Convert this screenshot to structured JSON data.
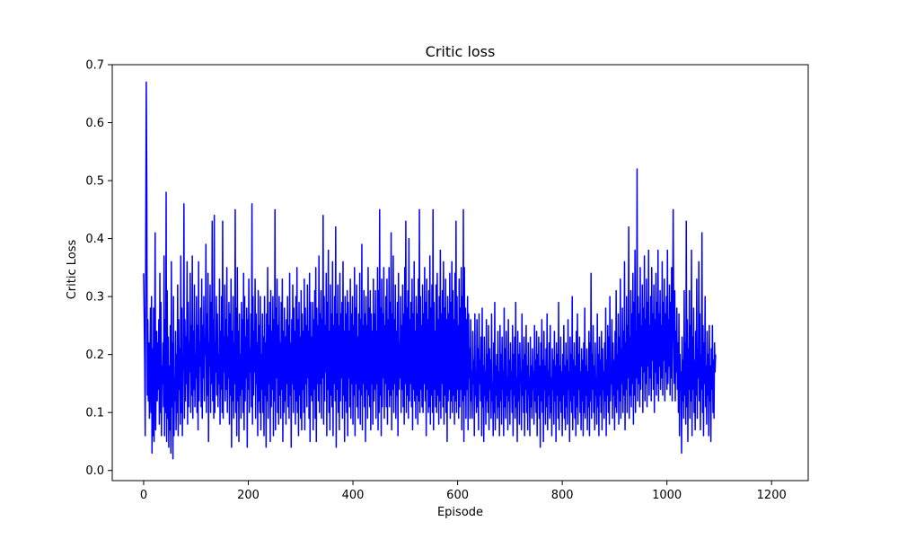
{
  "chart_data": {
    "type": "line",
    "title": "Critic loss",
    "xlabel": "Episode",
    "ylabel": "Critic Loss",
    "xlim": [
      -60,
      1270
    ],
    "ylim": [
      -0.0175,
      0.7
    ],
    "x_ticks": [
      0,
      200,
      400,
      600,
      800,
      1000,
      1200
    ],
    "y_ticks": [
      0.0,
      0.1,
      0.2,
      0.3,
      0.4,
      0.5,
      0.6,
      0.7
    ],
    "y_tick_labels": [
      "0.0",
      "0.1",
      "0.2",
      "0.3",
      "0.4",
      "0.5",
      "0.6",
      "0.7"
    ],
    "grid": false,
    "legend": "none",
    "series": [
      {
        "name": "",
        "color": "#0000ff",
        "x_start": 0,
        "x_step": 1,
        "description_points": "one loss value per episode, episodes 0-1210",
        "values": [
          0.34,
          0.27,
          0.19,
          0.06,
          0.4,
          0.67,
          0.49,
          0.13,
          0.26,
          0.12,
          0.22,
          0.09,
          0.18,
          0.28,
          0.1,
          0.3,
          0.03,
          0.21,
          0.06,
          0.28,
          0.05,
          0.2,
          0.41,
          0.07,
          0.17,
          0.24,
          0.12,
          0.22,
          0.14,
          0.26,
          0.08,
          0.34,
          0.1,
          0.29,
          0.06,
          0.18,
          0.15,
          0.22,
          0.11,
          0.37,
          0.06,
          0.26,
          0.1,
          0.48,
          0.05,
          0.31,
          0.09,
          0.23,
          0.04,
          0.18,
          0.07,
          0.25,
          0.03,
          0.36,
          0.11,
          0.22,
          0.02,
          0.3,
          0.06,
          0.16,
          0.12,
          0.24,
          0.07,
          0.2,
          0.1,
          0.32,
          0.06,
          0.26,
          0.14,
          0.21,
          0.08,
          0.37,
          0.1,
          0.28,
          0.06,
          0.17,
          0.2,
          0.46,
          0.09,
          0.26,
          0.12,
          0.23,
          0.15,
          0.36,
          0.08,
          0.29,
          0.11,
          0.22,
          0.17,
          0.34,
          0.1,
          0.25,
          0.13,
          0.37,
          0.09,
          0.24,
          0.14,
          0.32,
          0.11,
          0.2,
          0.16,
          0.3,
          0.1,
          0.25,
          0.07,
          0.36,
          0.12,
          0.22,
          0.18,
          0.28,
          0.11,
          0.33,
          0.09,
          0.25,
          0.16,
          0.3,
          0.12,
          0.23,
          0.2,
          0.39,
          0.1,
          0.27,
          0.13,
          0.34,
          0.05,
          0.22,
          0.18,
          0.32,
          0.1,
          0.29,
          0.15,
          0.43,
          0.12,
          0.26,
          0.09,
          0.44,
          0.1,
          0.22,
          0.17,
          0.3,
          0.13,
          0.27,
          0.11,
          0.2,
          0.15,
          0.33,
          0.08,
          0.24,
          0.14,
          0.3,
          0.1,
          0.43,
          0.09,
          0.23,
          0.17,
          0.32,
          0.12,
          0.26,
          0.14,
          0.35,
          0.1,
          0.23,
          0.16,
          0.29,
          0.08,
          0.27,
          0.13,
          0.33,
          0.04,
          0.24,
          0.12,
          0.3,
          0.09,
          0.22,
          0.15,
          0.45,
          0.1,
          0.28,
          0.06,
          0.35,
          0.12,
          0.24,
          0.05,
          0.27,
          0.13,
          0.2,
          0.09,
          0.29,
          0.14,
          0.26,
          0.1,
          0.34,
          0.07,
          0.3,
          0.12,
          0.23,
          0.16,
          0.28,
          0.04,
          0.26,
          0.14,
          0.33,
          0.1,
          0.21,
          0.17,
          0.27,
          0.11,
          0.46,
          0.08,
          0.3,
          0.13,
          0.24,
          0.17,
          0.33,
          0.09,
          0.27,
          0.15,
          0.22,
          0.06,
          0.31,
          0.12,
          0.25,
          0.1,
          0.3,
          0.07,
          0.2,
          0.14,
          0.27,
          0.1,
          0.23,
          0.06,
          0.3,
          0.13,
          0.22,
          0.04,
          0.27,
          0.12,
          0.35,
          0.09,
          0.25,
          0.15,
          0.29,
          0.05,
          0.31,
          0.11,
          0.24,
          0.14,
          0.3,
          0.06,
          0.26,
          0.12,
          0.45,
          0.07,
          0.28,
          0.16,
          0.33,
          0.1,
          0.25,
          0.08,
          0.3,
          0.13,
          0.22,
          0.09,
          0.29,
          0.14,
          0.33,
          0.05,
          0.24,
          0.1,
          0.28,
          0.12,
          0.23,
          0.08,
          0.26,
          0.15,
          0.3,
          0.11,
          0.25,
          0.09,
          0.34,
          0.13,
          0.22,
          0.04,
          0.26,
          0.15,
          0.32,
          0.1,
          0.28,
          0.14,
          0.24,
          0.08,
          0.3,
          0.12,
          0.35,
          0.1,
          0.26,
          0.06,
          0.29,
          0.13,
          0.23,
          0.09,
          0.31,
          0.07,
          0.27,
          0.14,
          0.24,
          0.1,
          0.33,
          0.07,
          0.28,
          0.15,
          0.25,
          0.11,
          0.32,
          0.16,
          0.24,
          0.09,
          0.34,
          0.05,
          0.29,
          0.13,
          0.23,
          0.12,
          0.29,
          0.07,
          0.26,
          0.14,
          0.31,
          0.09,
          0.35,
          0.05,
          0.28,
          0.15,
          0.25,
          0.12,
          0.37,
          0.1,
          0.27,
          0.15,
          0.31,
          0.09,
          0.26,
          0.16,
          0.44,
          0.08,
          0.3,
          0.12,
          0.25,
          0.17,
          0.34,
          0.06,
          0.29,
          0.14,
          0.38,
          0.1,
          0.24,
          0.07,
          0.32,
          0.13,
          0.27,
          0.11,
          0.36,
          0.06,
          0.25,
          0.15,
          0.3,
          0.12,
          0.42,
          0.04,
          0.27,
          0.14,
          0.32,
          0.1,
          0.25,
          0.07,
          0.34,
          0.12,
          0.27,
          0.16,
          0.29,
          0.09,
          0.36,
          0.13,
          0.24,
          0.05,
          0.3,
          0.12,
          0.27,
          0.1,
          0.31,
          0.06,
          0.29,
          0.16,
          0.24,
          0.11,
          0.33,
          0.09,
          0.27,
          0.15,
          0.3,
          0.08,
          0.25,
          0.13,
          0.35,
          0.06,
          0.28,
          0.15,
          0.32,
          0.11,
          0.23,
          0.09,
          0.27,
          0.14,
          0.34,
          0.08,
          0.26,
          0.13,
          0.39,
          0.07,
          0.25,
          0.15,
          0.31,
          0.11,
          0.27,
          0.05,
          0.3,
          0.14,
          0.25,
          0.09,
          0.35,
          0.13,
          0.28,
          0.11,
          0.31,
          0.07,
          0.27,
          0.15,
          0.24,
          0.08,
          0.33,
          0.12,
          0.27,
          0.14,
          0.31,
          0.09,
          0.24,
          0.15,
          0.35,
          0.07,
          0.31,
          0.1,
          0.45,
          0.13,
          0.28,
          0.06,
          0.33,
          0.11,
          0.27,
          0.16,
          0.35,
          0.09,
          0.25,
          0.15,
          0.3,
          0.11,
          0.33,
          0.08,
          0.26,
          0.14,
          0.35,
          0.11,
          0.29,
          0.13,
          0.41,
          0.07,
          0.27,
          0.14,
          0.37,
          0.1,
          0.26,
          0.15,
          0.32,
          0.09,
          0.24,
          0.13,
          0.29,
          0.06,
          0.34,
          0.14,
          0.22,
          0.16,
          0.3,
          0.1,
          0.25,
          0.14,
          0.32,
          0.11,
          0.27,
          0.08,
          0.35,
          0.15,
          0.43,
          0.1,
          0.28,
          0.13,
          0.31,
          0.09,
          0.4,
          0.12,
          0.26,
          0.15,
          0.29,
          0.11,
          0.33,
          0.07,
          0.27,
          0.14,
          0.36,
          0.12,
          0.24,
          0.09,
          0.3,
          0.13,
          0.27,
          0.08,
          0.33,
          0.12,
          0.45,
          0.1,
          0.3,
          0.14,
          0.25,
          0.11,
          0.32,
          0.1,
          0.27,
          0.15,
          0.35,
          0.12,
          0.29,
          0.06,
          0.33,
          0.14,
          0.26,
          0.1,
          0.31,
          0.11,
          0.37,
          0.08,
          0.28,
          0.13,
          0.32,
          0.1,
          0.45,
          0.07,
          0.29,
          0.14,
          0.24,
          0.11,
          0.32,
          0.1,
          0.34,
          0.13,
          0.26,
          0.08,
          0.3,
          0.12,
          0.38,
          0.09,
          0.27,
          0.15,
          0.31,
          0.11,
          0.36,
          0.08,
          0.28,
          0.13,
          0.33,
          0.1,
          0.26,
          0.05,
          0.3,
          0.12,
          0.27,
          0.14,
          0.34,
          0.09,
          0.29,
          0.12,
          0.36,
          0.1,
          0.31,
          0.13,
          0.26,
          0.08,
          0.34,
          0.12,
          0.43,
          0.1,
          0.3,
          0.14,
          0.25,
          0.09,
          0.33,
          0.11,
          0.28,
          0.14,
          0.35,
          0.07,
          0.3,
          0.12,
          0.45,
          0.05,
          0.35,
          0.13,
          0.28,
          0.09,
          0.26,
          0.14,
          0.3,
          0.07,
          0.27,
          0.16,
          0.21,
          0.09,
          0.26,
          0.12,
          0.17,
          0.09,
          0.24,
          0.15,
          0.19,
          0.06,
          0.27,
          0.13,
          0.17,
          0.1,
          0.26,
          0.11,
          0.21,
          0.07,
          0.27,
          0.15,
          0.19,
          0.12,
          0.23,
          0.06,
          0.28,
          0.11,
          0.18,
          0.05,
          0.23,
          0.13,
          0.17,
          0.08,
          0.26,
          0.12,
          0.2,
          0.1,
          0.25,
          0.07,
          0.21,
          0.14,
          0.19,
          0.09,
          0.27,
          0.12,
          0.15,
          0.06,
          0.22,
          0.1,
          0.29,
          0.07,
          0.18,
          0.13,
          0.2,
          0.09,
          0.24,
          0.11,
          0.17,
          0.06,
          0.25,
          0.12,
          0.2,
          0.08,
          0.23,
          0.14,
          0.17,
          0.06,
          0.28,
          0.11,
          0.21,
          0.09,
          0.24,
          0.13,
          0.16,
          0.07,
          0.26,
          0.12,
          0.19,
          0.08,
          0.22,
          0.14,
          0.17,
          0.1,
          0.25,
          0.06,
          0.2,
          0.13,
          0.23,
          0.09,
          0.29,
          0.11,
          0.16,
          0.05,
          0.24,
          0.12,
          0.2,
          0.08,
          0.22,
          0.15,
          0.17,
          0.07,
          0.27,
          0.13,
          0.19,
          0.1,
          0.23,
          0.06,
          0.2,
          0.14,
          0.25,
          0.1,
          0.18,
          0.07,
          0.22,
          0.13,
          0.16,
          0.06,
          0.23,
          0.11,
          0.18,
          0.09,
          0.21,
          0.14,
          0.17,
          0.08,
          0.25,
          0.12,
          0.19,
          0.1,
          0.24,
          0.06,
          0.2,
          0.13,
          0.23,
          0.09,
          0.18,
          0.04,
          0.22,
          0.12,
          0.26,
          0.1,
          0.19,
          0.05,
          0.24,
          0.14,
          0.18,
          0.08,
          0.21,
          0.11,
          0.27,
          0.07,
          0.17,
          0.13,
          0.22,
          0.09,
          0.25,
          0.1,
          0.16,
          0.06,
          0.21,
          0.14,
          0.19,
          0.08,
          0.24,
          0.12,
          0.18,
          0.05,
          0.22,
          0.13,
          0.2,
          0.09,
          0.29,
          0.07,
          0.18,
          0.12,
          0.23,
          0.1,
          0.17,
          0.06,
          0.2,
          0.13,
          0.25,
          0.09,
          0.18,
          0.07,
          0.22,
          0.11,
          0.19,
          0.08,
          0.26,
          0.14,
          0.17,
          0.05,
          0.23,
          0.12,
          0.2,
          0.1,
          0.3,
          0.07,
          0.19,
          0.13,
          0.22,
          0.09,
          0.18,
          0.06,
          0.24,
          0.11,
          0.27,
          0.08,
          0.2,
          0.14,
          0.23,
          0.1,
          0.17,
          0.07,
          0.21,
          0.12,
          0.19,
          0.06,
          0.22,
          0.1,
          0.28,
          0.09,
          0.18,
          0.13,
          0.21,
          0.07,
          0.17,
          0.11,
          0.24,
          0.06,
          0.22,
          0.12,
          0.34,
          0.09,
          0.2,
          0.14,
          0.25,
          0.1,
          0.18,
          0.07,
          0.22,
          0.13,
          0.16,
          0.08,
          0.27,
          0.11,
          0.2,
          0.06,
          0.23,
          0.13,
          0.19,
          0.1,
          0.24,
          0.07,
          0.21,
          0.14,
          0.17,
          0.09,
          0.22,
          0.12,
          0.28,
          0.06,
          0.19,
          0.13,
          0.25,
          0.1,
          0.23,
          0.08,
          0.3,
          0.12,
          0.18,
          0.15,
          0.26,
          0.09,
          0.22,
          0.13,
          0.19,
          0.07,
          0.24,
          0.11,
          0.31,
          0.1,
          0.2,
          0.14,
          0.27,
          0.08,
          0.23,
          0.12,
          0.33,
          0.09,
          0.21,
          0.15,
          0.28,
          0.1,
          0.24,
          0.13,
          0.36,
          0.07,
          0.22,
          0.14,
          0.3,
          0.1,
          0.25,
          0.16,
          0.42,
          0.09,
          0.23,
          0.13,
          0.31,
          0.11,
          0.27,
          0.15,
          0.34,
          0.08,
          0.29,
          0.13,
          0.38,
          0.1,
          0.24,
          0.16,
          0.52,
          0.12,
          0.3,
          0.15,
          0.27,
          0.11,
          0.35,
          0.14,
          0.25,
          0.18,
          0.32,
          0.1,
          0.28,
          0.17,
          0.37,
          0.12,
          0.26,
          0.15,
          0.33,
          0.11,
          0.29,
          0.18,
          0.38,
          0.13,
          0.25,
          0.16,
          0.3,
          0.12,
          0.35,
          0.19,
          0.27,
          0.14,
          0.32,
          0.1,
          0.26,
          0.17,
          0.34,
          0.13,
          0.29,
          0.15,
          0.38,
          0.12,
          0.27,
          0.18,
          0.31,
          0.14,
          0.25,
          0.16,
          0.36,
          0.13,
          0.29,
          0.19,
          0.33,
          0.12,
          0.27,
          0.17,
          0.3,
          0.14,
          0.38,
          0.15,
          0.26,
          0.18,
          0.32,
          0.13,
          0.29,
          0.16,
          0.35,
          0.12,
          0.28,
          0.45,
          0.26,
          0.15,
          0.31,
          0.12,
          0.24,
          0.17,
          0.28,
          0.14,
          0.22,
          0.1,
          0.27,
          0.06,
          0.2,
          0.14,
          0.17,
          0.03,
          0.23,
          0.12,
          0.19,
          0.09,
          0.31,
          0.13,
          0.22,
          0.08,
          0.43,
          0.11,
          0.26,
          0.05,
          0.21,
          0.14,
          0.31,
          0.09,
          0.25,
          0.12,
          0.38,
          0.06,
          0.23,
          0.14,
          0.28,
          0.1,
          0.19,
          0.07,
          0.24,
          0.13,
          0.33,
          0.09,
          0.21,
          0.16,
          0.36,
          0.12,
          0.27,
          0.07,
          0.2,
          0.14,
          0.41,
          0.1,
          0.25,
          0.06,
          0.22,
          0.15,
          0.3,
          0.11,
          0.18,
          0.08,
          0.24,
          0.13,
          0.2,
          0.06,
          0.25,
          0.12,
          0.18,
          0.05,
          0.21,
          0.14,
          0.25,
          0.1,
          0.19,
          0.09,
          0.22,
          0.17,
          0.2
        ]
      }
    ]
  }
}
